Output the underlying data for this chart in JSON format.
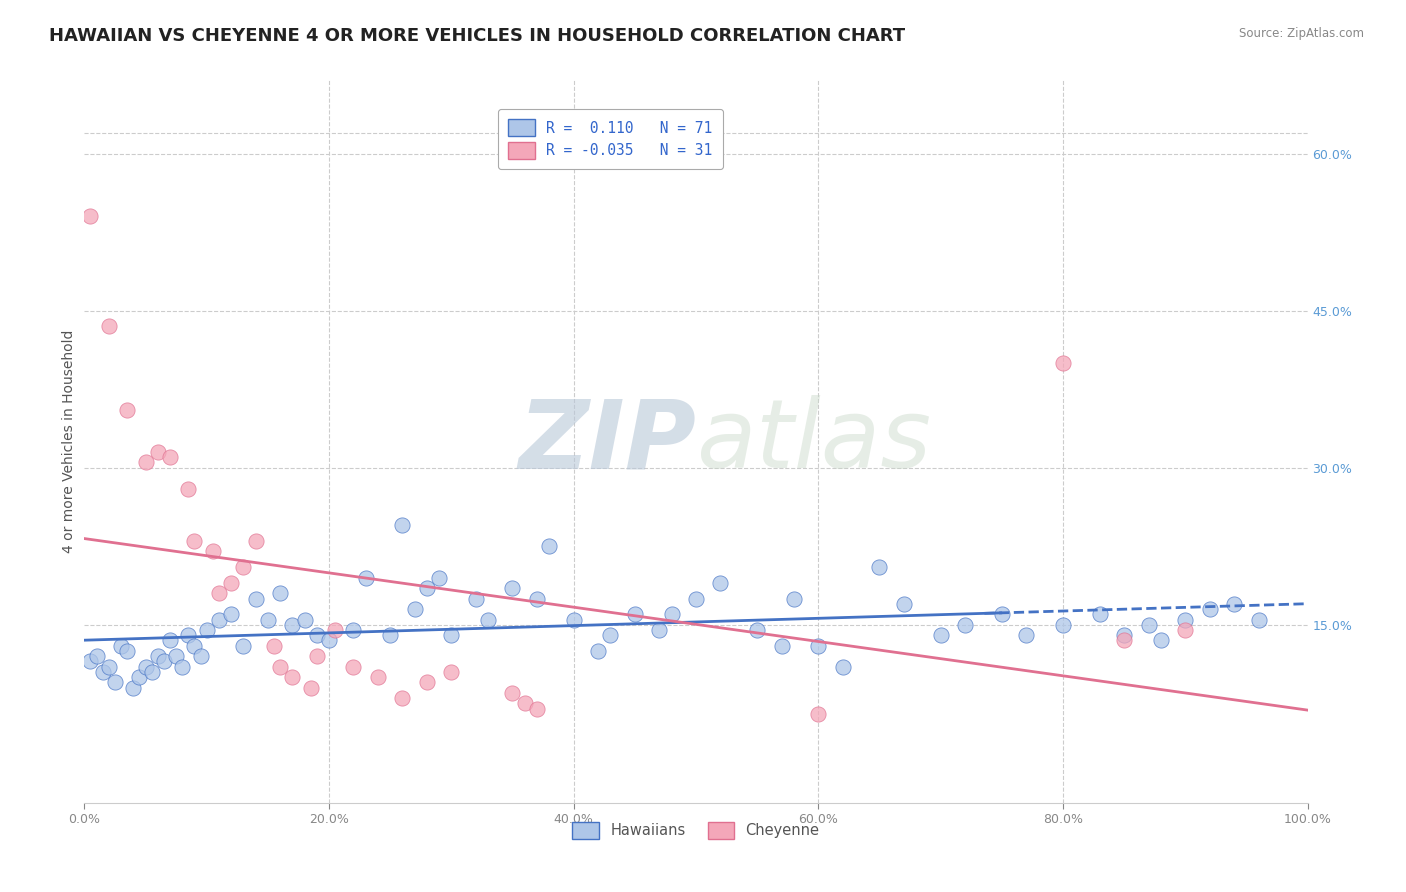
{
  "title": "HAWAIIAN VS CHEYENNE 4 OR MORE VEHICLES IN HOUSEHOLD CORRELATION CHART",
  "source": "Source: ZipAtlas.com",
  "ylabel": "4 or more Vehicles in Household",
  "xlim": [
    0.0,
    100.0
  ],
  "ylim": [
    -2.0,
    67.0
  ],
  "ytick_positions": [
    15.0,
    30.0,
    45.0,
    60.0
  ],
  "ytick_labels": [
    "15.0%",
    "30.0%",
    "45.0%",
    "60.0%"
  ],
  "xtick_positions": [
    0.0,
    20.0,
    40.0,
    60.0,
    80.0,
    100.0
  ],
  "xtick_labels": [
    "0.0%",
    "20.0%",
    "40.0%",
    "60.0%",
    "80.0%",
    "100.0%"
  ],
  "hawaiian_color": "#aec6e8",
  "cheyenne_color": "#f4a7b9",
  "hawaiian_line_color": "#4472c4",
  "cheyenne_line_color": "#e07090",
  "watermark_zip": "ZIP",
  "watermark_atlas": "atlas",
  "hawaiian_scatter": [
    [
      0.5,
      11.5
    ],
    [
      1.0,
      12.0
    ],
    [
      1.5,
      10.5
    ],
    [
      2.0,
      11.0
    ],
    [
      2.5,
      9.5
    ],
    [
      3.0,
      13.0
    ],
    [
      3.5,
      12.5
    ],
    [
      4.0,
      9.0
    ],
    [
      4.5,
      10.0
    ],
    [
      5.0,
      11.0
    ],
    [
      5.5,
      10.5
    ],
    [
      6.0,
      12.0
    ],
    [
      6.5,
      11.5
    ],
    [
      7.0,
      13.5
    ],
    [
      7.5,
      12.0
    ],
    [
      8.0,
      11.0
    ],
    [
      8.5,
      14.0
    ],
    [
      9.0,
      13.0
    ],
    [
      9.5,
      12.0
    ],
    [
      10.0,
      14.5
    ],
    [
      11.0,
      15.5
    ],
    [
      12.0,
      16.0
    ],
    [
      13.0,
      13.0
    ],
    [
      14.0,
      17.5
    ],
    [
      15.0,
      15.5
    ],
    [
      16.0,
      18.0
    ],
    [
      17.0,
      15.0
    ],
    [
      18.0,
      15.5
    ],
    [
      19.0,
      14.0
    ],
    [
      20.0,
      13.5
    ],
    [
      22.0,
      14.5
    ],
    [
      23.0,
      19.5
    ],
    [
      25.0,
      14.0
    ],
    [
      26.0,
      24.5
    ],
    [
      27.0,
      16.5
    ],
    [
      28.0,
      18.5
    ],
    [
      29.0,
      19.5
    ],
    [
      30.0,
      14.0
    ],
    [
      32.0,
      17.5
    ],
    [
      33.0,
      15.5
    ],
    [
      35.0,
      18.5
    ],
    [
      37.0,
      17.5
    ],
    [
      38.0,
      22.5
    ],
    [
      40.0,
      15.5
    ],
    [
      42.0,
      12.5
    ],
    [
      43.0,
      14.0
    ],
    [
      45.0,
      16.0
    ],
    [
      47.0,
      14.5
    ],
    [
      48.0,
      16.0
    ],
    [
      50.0,
      17.5
    ],
    [
      52.0,
      19.0
    ],
    [
      55.0,
      14.5
    ],
    [
      57.0,
      13.0
    ],
    [
      58.0,
      17.5
    ],
    [
      60.0,
      13.0
    ],
    [
      62.0,
      11.0
    ],
    [
      65.0,
      20.5
    ],
    [
      67.0,
      17.0
    ],
    [
      70.0,
      14.0
    ],
    [
      72.0,
      15.0
    ],
    [
      75.0,
      16.0
    ],
    [
      77.0,
      14.0
    ],
    [
      80.0,
      15.0
    ],
    [
      83.0,
      16.0
    ],
    [
      85.0,
      14.0
    ],
    [
      87.0,
      15.0
    ],
    [
      88.0,
      13.5
    ],
    [
      90.0,
      15.5
    ],
    [
      92.0,
      16.5
    ],
    [
      94.0,
      17.0
    ],
    [
      96.0,
      15.5
    ]
  ],
  "cheyenne_scatter": [
    [
      0.5,
      54.0
    ],
    [
      2.0,
      43.5
    ],
    [
      3.5,
      35.5
    ],
    [
      5.0,
      30.5
    ],
    [
      6.0,
      31.5
    ],
    [
      7.0,
      31.0
    ],
    [
      8.5,
      28.0
    ],
    [
      9.0,
      23.0
    ],
    [
      10.5,
      22.0
    ],
    [
      11.0,
      18.0
    ],
    [
      12.0,
      19.0
    ],
    [
      13.0,
      20.5
    ],
    [
      14.0,
      23.0
    ],
    [
      15.5,
      13.0
    ],
    [
      16.0,
      11.0
    ],
    [
      17.0,
      10.0
    ],
    [
      18.5,
      9.0
    ],
    [
      19.0,
      12.0
    ],
    [
      20.5,
      14.5
    ],
    [
      22.0,
      11.0
    ],
    [
      24.0,
      10.0
    ],
    [
      26.0,
      8.0
    ],
    [
      28.0,
      9.5
    ],
    [
      30.0,
      10.5
    ],
    [
      35.0,
      8.5
    ],
    [
      36.0,
      7.5
    ],
    [
      37.0,
      7.0
    ],
    [
      60.0,
      6.5
    ],
    [
      80.0,
      40.0
    ],
    [
      85.0,
      13.5
    ],
    [
      90.0,
      14.5
    ]
  ],
  "background_color": "#ffffff",
  "grid_color": "#cccccc",
  "title_fontsize": 13,
  "axis_label_fontsize": 10,
  "tick_fontsize": 9,
  "right_tick_color": "#5b9bd5"
}
